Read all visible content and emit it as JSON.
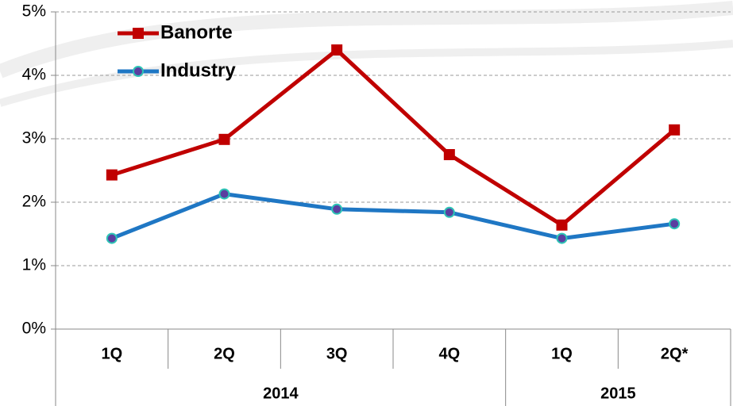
{
  "chart_data": {
    "type": "line",
    "categories": [
      "1Q",
      "2Q",
      "3Q",
      "4Q",
      "1Q",
      "2Q*"
    ],
    "groups": [
      {
        "label": "2014",
        "count": 4
      },
      {
        "label": "2015",
        "count": 2
      }
    ],
    "series": [
      {
        "name": "Banorte",
        "color": "#c00000",
        "marker": "square",
        "values": [
          2.43,
          2.99,
          4.4,
          2.75,
          1.64,
          3.14
        ]
      },
      {
        "name": "Industry",
        "color": "#1f77c4",
        "marker": "circle",
        "values": [
          1.43,
          2.13,
          1.89,
          1.84,
          1.43,
          1.66
        ]
      }
    ],
    "ylim": [
      0,
      5
    ],
    "yticks": [
      {
        "value": 0,
        "label": "0%"
      },
      {
        "value": 1,
        "label": "1%"
      },
      {
        "value": 2,
        "label": "2%"
      },
      {
        "value": 3,
        "label": "3%"
      },
      {
        "value": 4,
        "label": "4%"
      },
      {
        "value": 5,
        "label": "5%"
      }
    ],
    "grid": true,
    "legend": "top-left"
  }
}
